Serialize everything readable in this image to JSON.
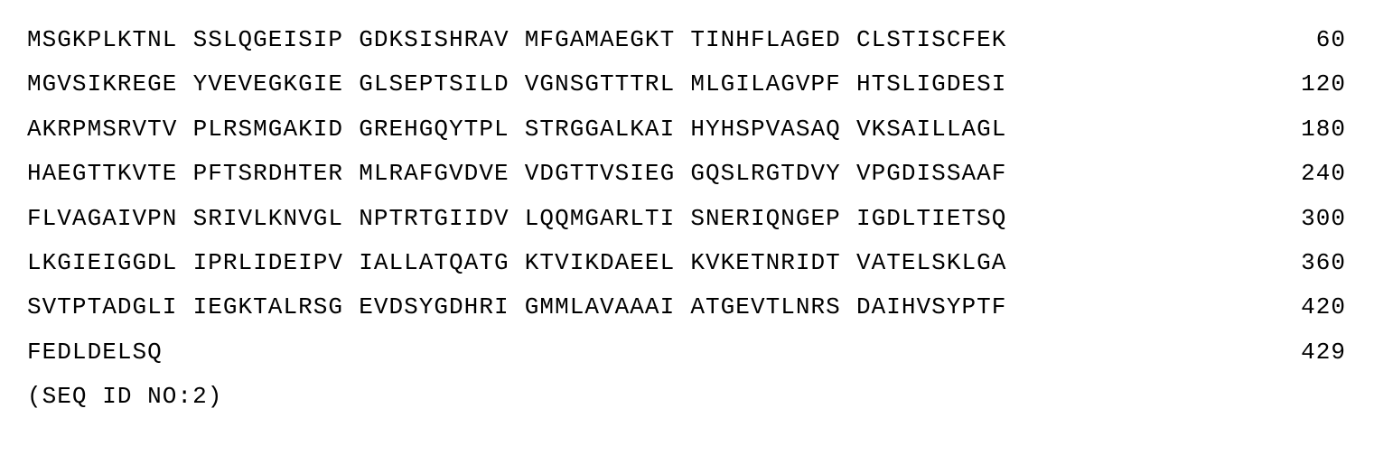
{
  "sequence": {
    "font_family": "Courier New",
    "font_size_pt": 20,
    "text_color": "#000000",
    "background_color": "#ffffff",
    "rows": [
      {
        "blocks": [
          "MSGKPLKTNL",
          "SSLQGEISIP",
          "GDKSISHRAV",
          "MFGAMAEGKT",
          "TINHFLAGED",
          "CLSTISCFEK"
        ],
        "pos": "60"
      },
      {
        "blocks": [
          "MGVSIKREGE",
          "YVEVEGKGIE",
          "GLSEPTSILD",
          "VGNSGTTTRL",
          "MLGILAGVPF",
          "HTSLIGDESI"
        ],
        "pos": "120"
      },
      {
        "blocks": [
          "AKRPMSRVTV",
          "PLRSMGAKID",
          "GREHGQYTPL",
          "STRGGALKAI",
          "HYHSPVASAQ",
          "VKSAILLAGL"
        ],
        "pos": "180"
      },
      {
        "blocks": [
          "HAEGTTKVTE",
          "PFTSRDHTER",
          "MLRAFGVDVE",
          "VDGTTVSIEG",
          "GQSLRGTDVY",
          "VPGDISSAAF"
        ],
        "pos": "240"
      },
      {
        "blocks": [
          "FLVAGAIVPN",
          "SRIVLKNVGL",
          "NPTRTGIIDV",
          "LQQMGARLTI",
          "SNERIQNGEP",
          "IGDLTIETSQ"
        ],
        "pos": "300"
      },
      {
        "blocks": [
          "LKGIEIGGDL",
          "IPRLIDEIPV",
          "IALLATQATG",
          "KTVIKDAEEL",
          "KVKETNRIDT",
          "VATELSKLGA"
        ],
        "pos": "360"
      },
      {
        "blocks": [
          "SVTPTADGLI",
          "IEGKTALRSG",
          "EVDSYGDHRI",
          "GMMLAVAAAI",
          "ATGEVTLNRS",
          "DAIHVSYPTF"
        ],
        "pos": "420"
      },
      {
        "blocks": [
          "FEDLDELSQ"
        ],
        "pos": "429"
      }
    ],
    "seq_id_label": "(SEQ ID NO:2)"
  }
}
